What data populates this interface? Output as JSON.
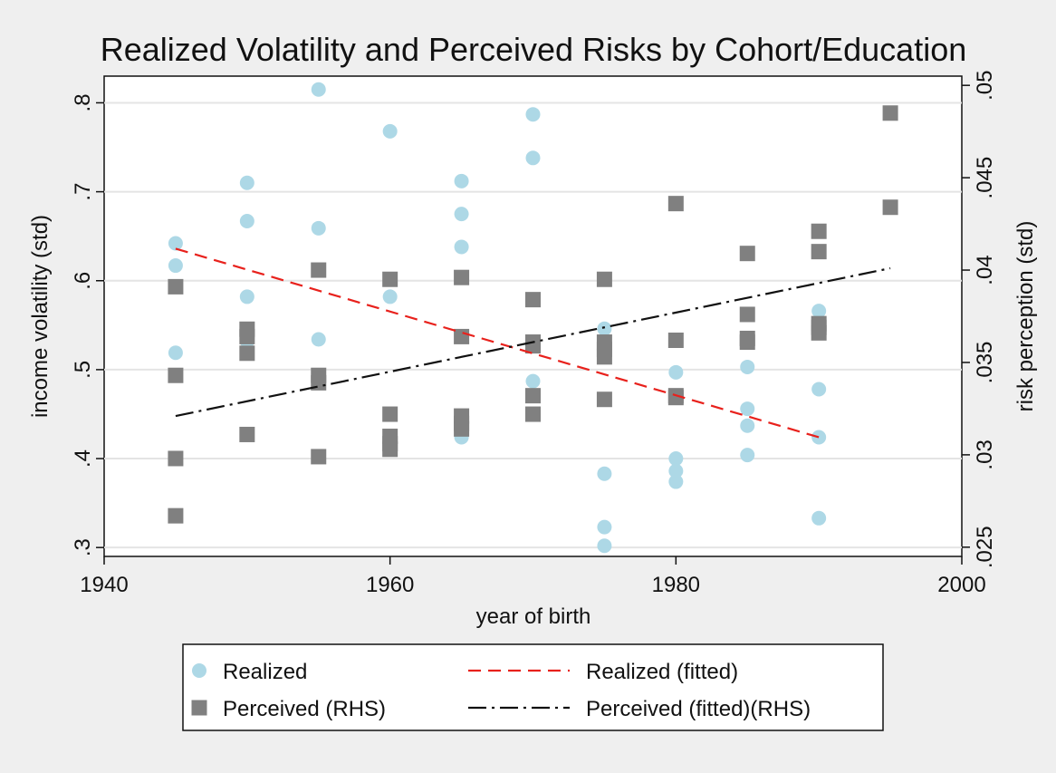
{
  "chart_data": {
    "type": "scatter",
    "title": "Realized Volatility and Perceived Risks by Cohort/Education",
    "xlabel": "year of birth",
    "ylabel_left": "income volatility (std)",
    "ylabel_right": "risk perception (std)",
    "xlim": [
      1940,
      2000
    ],
    "ylim_left": [
      0.29,
      0.83
    ],
    "ylim_right": [
      0.0245,
      0.0505
    ],
    "x_ticks": [
      {
        "value": 1940,
        "label": "1940"
      },
      {
        "value": 1960,
        "label": "1960"
      },
      {
        "value": 1980,
        "label": "1980"
      },
      {
        "value": 2000,
        "label": "2000"
      }
    ],
    "y_ticks_left": [
      {
        "value": 0.3,
        "label": ".3"
      },
      {
        "value": 0.4,
        "label": ".4"
      },
      {
        "value": 0.5,
        "label": ".5"
      },
      {
        "value": 0.6,
        "label": ".6"
      },
      {
        "value": 0.7,
        "label": ".7"
      },
      {
        "value": 0.8,
        "label": ".8"
      }
    ],
    "y_ticks_right": [
      {
        "value": 0.025,
        "label": ".025"
      },
      {
        "value": 0.03,
        "label": ".03"
      },
      {
        "value": 0.035,
        "label": ".035"
      },
      {
        "value": 0.04,
        "label": ".04"
      },
      {
        "value": 0.045,
        "label": ".045"
      },
      {
        "value": 0.05,
        "label": ".05"
      }
    ],
    "grid": "horizontal",
    "legend_position": "bottom",
    "series": [
      {
        "name": "Realized",
        "kind": "scatter",
        "marker": "circle",
        "axis": "left",
        "color": "#add8e6",
        "points": [
          [
            1945,
            0.642
          ],
          [
            1945,
            0.617
          ],
          [
            1945,
            0.519
          ],
          [
            1950,
            0.71
          ],
          [
            1950,
            0.667
          ],
          [
            1950,
            0.582
          ],
          [
            1950,
            0.535
          ],
          [
            1950,
            0.532
          ],
          [
            1955,
            0.815
          ],
          [
            1955,
            0.659
          ],
          [
            1955,
            0.612
          ],
          [
            1955,
            0.534
          ],
          [
            1960,
            0.768
          ],
          [
            1960,
            0.582
          ],
          [
            1960,
            0.424
          ],
          [
            1965,
            0.712
          ],
          [
            1965,
            0.675
          ],
          [
            1965,
            0.638
          ],
          [
            1965,
            0.424
          ],
          [
            1970,
            0.787
          ],
          [
            1970,
            0.738
          ],
          [
            1970,
            0.487
          ],
          [
            1975,
            0.546
          ],
          [
            1975,
            0.383
          ],
          [
            1975,
            0.323
          ],
          [
            1975,
            0.302
          ],
          [
            1980,
            0.497
          ],
          [
            1980,
            0.4
          ],
          [
            1980,
            0.386
          ],
          [
            1980,
            0.374
          ],
          [
            1985,
            0.503
          ],
          [
            1985,
            0.456
          ],
          [
            1985,
            0.437
          ],
          [
            1985,
            0.404
          ],
          [
            1990,
            0.566
          ],
          [
            1990,
            0.478
          ],
          [
            1990,
            0.424
          ],
          [
            1990,
            0.333
          ]
        ]
      },
      {
        "name": "Perceived (RHS)",
        "kind": "scatter",
        "marker": "square",
        "axis": "right",
        "color": "#808080",
        "points": [
          [
            1945,
            0.0391
          ],
          [
            1945,
            0.0343
          ],
          [
            1945,
            0.0298
          ],
          [
            1945,
            0.0267
          ],
          [
            1950,
            0.0368
          ],
          [
            1950,
            0.0364
          ],
          [
            1950,
            0.0355
          ],
          [
            1950,
            0.0311
          ],
          [
            1955,
            0.04
          ],
          [
            1955,
            0.0343
          ],
          [
            1955,
            0.0339
          ],
          [
            1955,
            0.0299
          ],
          [
            1960,
            0.0395
          ],
          [
            1960,
            0.0322
          ],
          [
            1960,
            0.031
          ],
          [
            1960,
            0.0306
          ],
          [
            1960,
            0.0303
          ],
          [
            1965,
            0.0396
          ],
          [
            1965,
            0.0364
          ],
          [
            1965,
            0.0321
          ],
          [
            1965,
            0.0317
          ],
          [
            1965,
            0.0314
          ],
          [
            1970,
            0.0384
          ],
          [
            1970,
            0.0361
          ],
          [
            1970,
            0.0359
          ],
          [
            1970,
            0.0332
          ],
          [
            1970,
            0.0322
          ],
          [
            1975,
            0.0395
          ],
          [
            1975,
            0.0361
          ],
          [
            1975,
            0.0357
          ],
          [
            1975,
            0.0353
          ],
          [
            1975,
            0.033
          ],
          [
            1980,
            0.0436
          ],
          [
            1980,
            0.0362
          ],
          [
            1980,
            0.0332
          ],
          [
            1980,
            0.0331
          ],
          [
            1985,
            0.0409
          ],
          [
            1985,
            0.0376
          ],
          [
            1985,
            0.0363
          ],
          [
            1985,
            0.0361
          ],
          [
            1990,
            0.0421
          ],
          [
            1990,
            0.041
          ],
          [
            1990,
            0.0371
          ],
          [
            1990,
            0.0369
          ],
          [
            1990,
            0.0366
          ],
          [
            1995,
            0.0485
          ],
          [
            1995,
            0.0434
          ]
        ]
      },
      {
        "name": "Realized (fitted)",
        "kind": "line",
        "dash": "dashed",
        "axis": "left",
        "color": "#e8211c",
        "points": [
          [
            1945,
            0.636
          ],
          [
            1990,
            0.424
          ]
        ]
      },
      {
        "name": "Perceived (fitted)(RHS)",
        "kind": "line",
        "dash": "dash-dot",
        "axis": "right",
        "color": "#111111",
        "points": [
          [
            1945,
            0.0321
          ],
          [
            1995,
            0.0401
          ]
        ]
      }
    ]
  }
}
